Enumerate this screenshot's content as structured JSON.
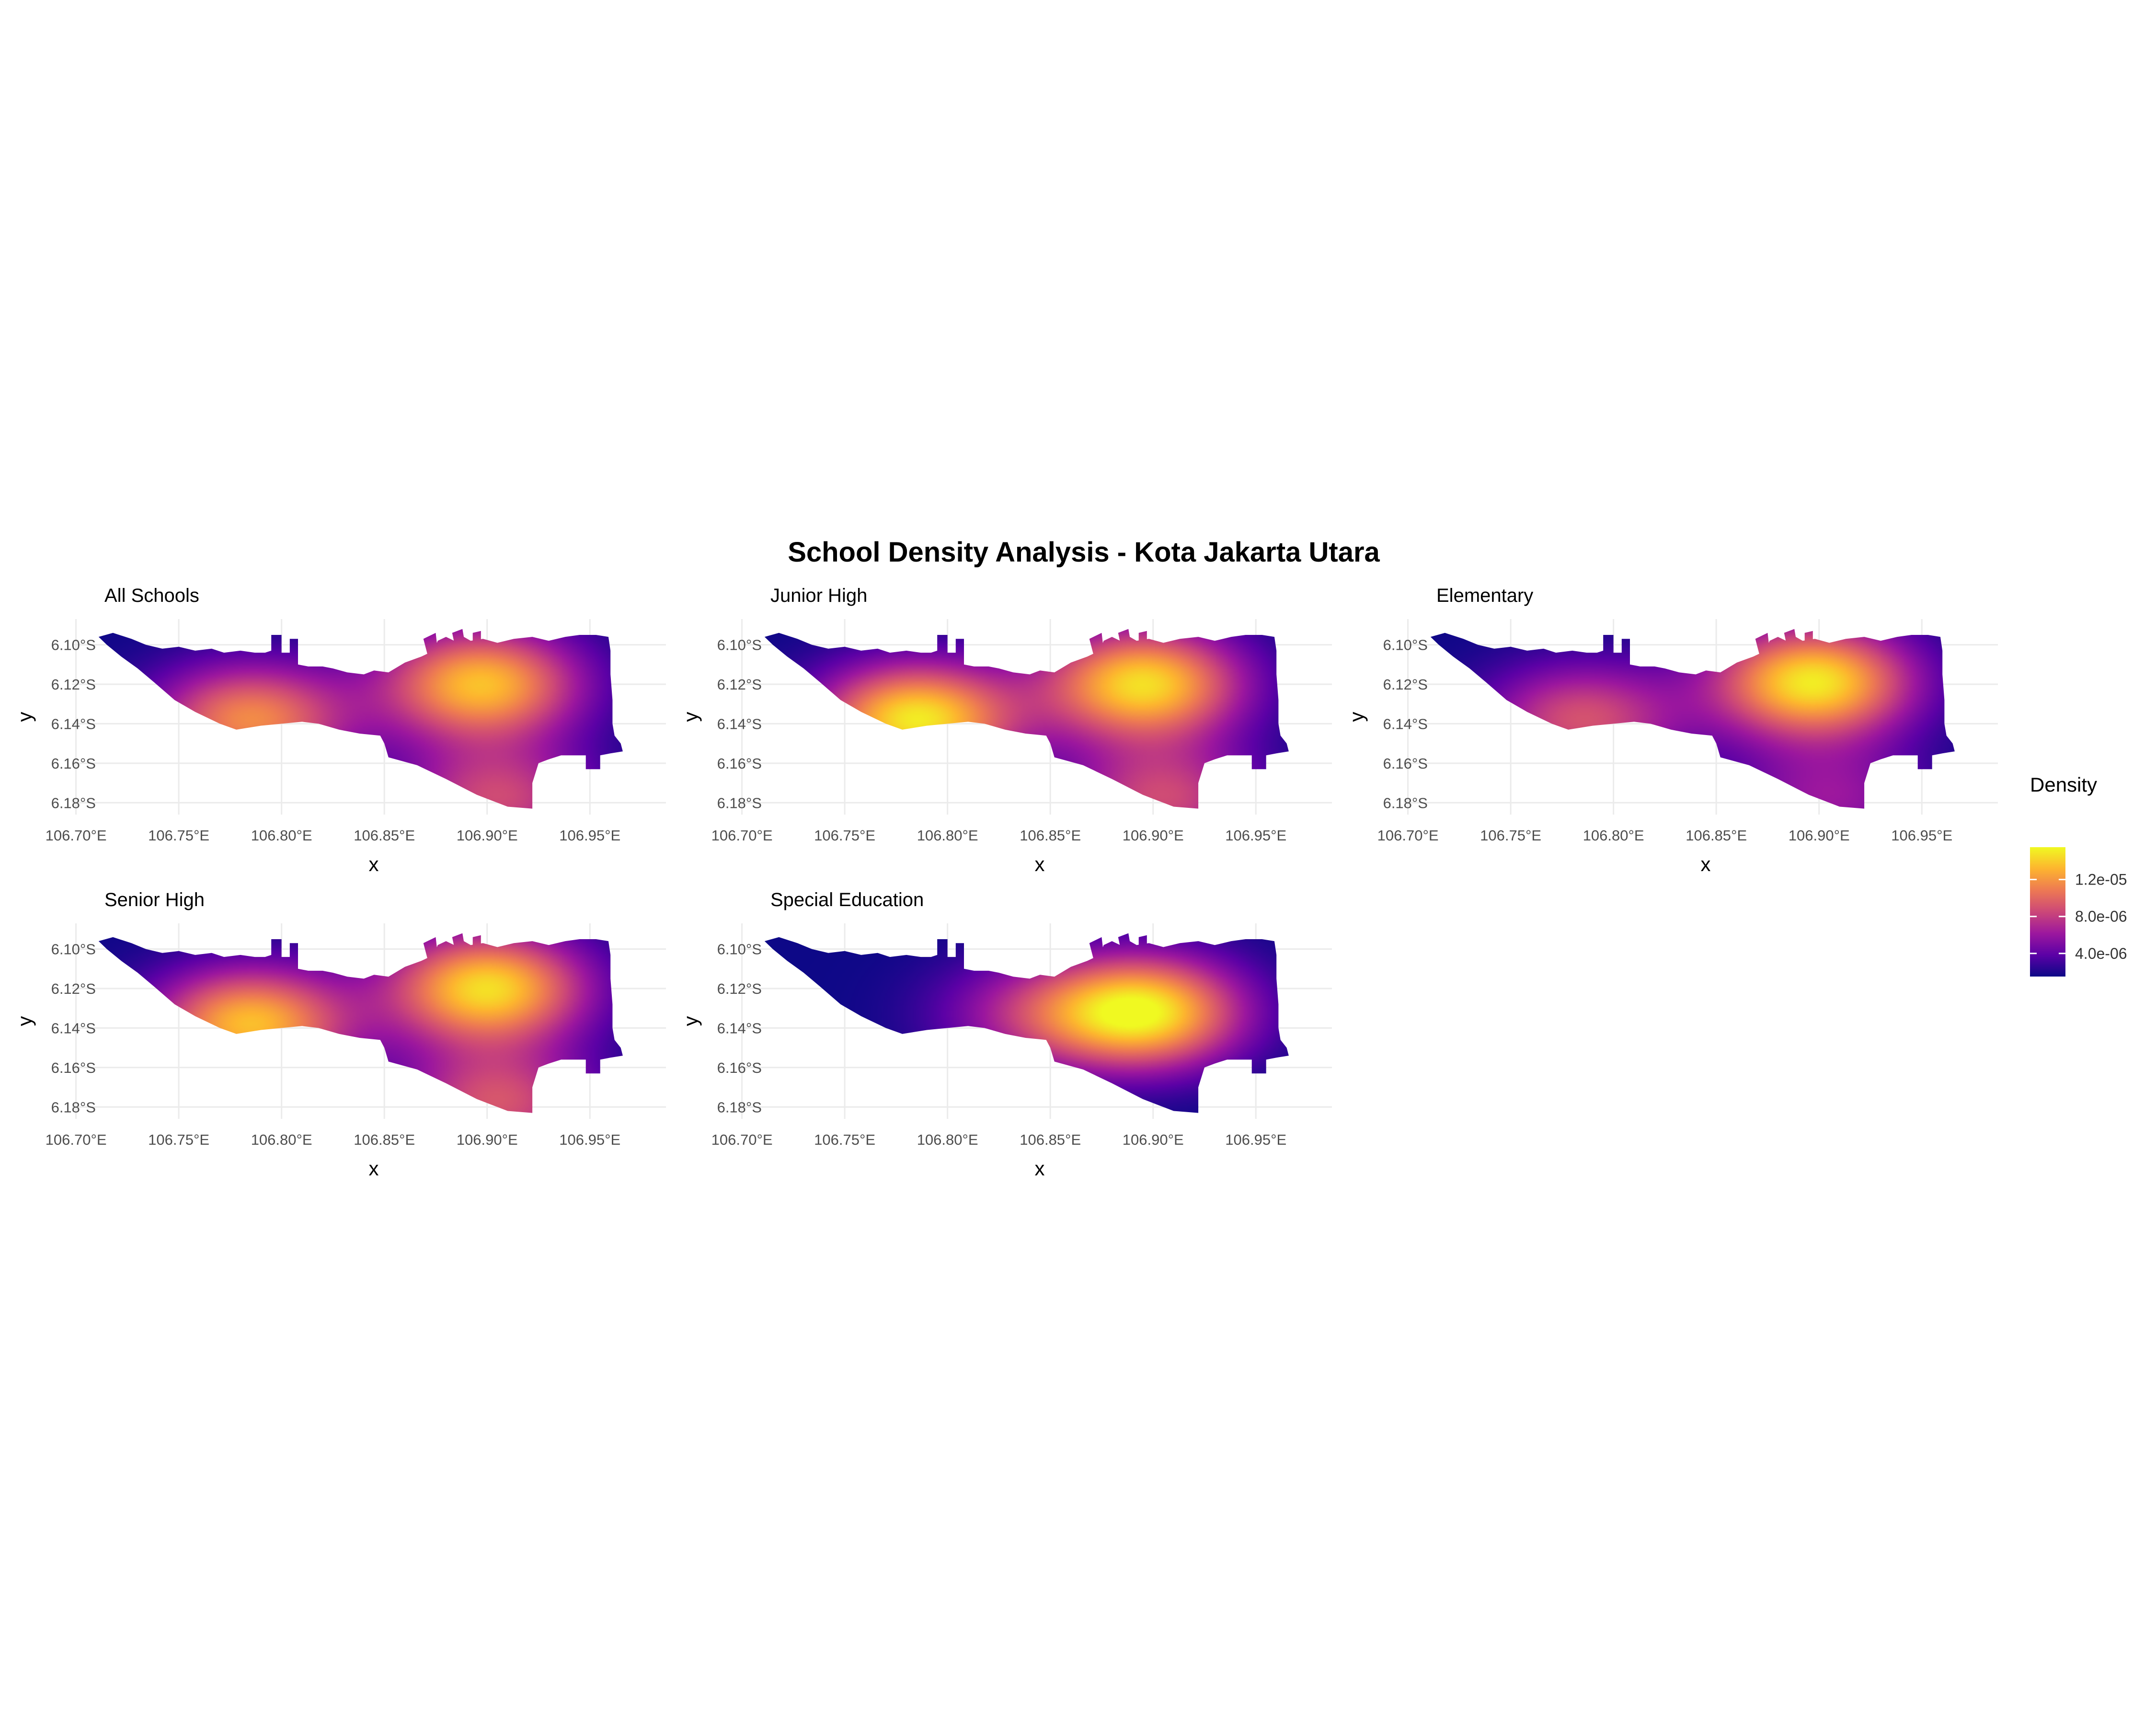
{
  "title": "School Density Analysis - Kota Jakarta Utara",
  "x_axis_label": "x",
  "y_axis_label": "y",
  "colors": {
    "palette": [
      "#0d0887",
      "#5c01a6",
      "#9c179e",
      "#cc4778",
      "#ed7953",
      "#fdb42f",
      "#f0f921"
    ],
    "grid": "#ebebeb",
    "background": "#ffffff"
  },
  "legend": {
    "title": "Density",
    "placement": "right",
    "range": [
      1.5e-06,
      1.55e-05
    ],
    "ticks": [
      {
        "value": 4e-06,
        "label": "4.0e-06"
      },
      {
        "value": 8e-06,
        "label": "8.0e-06"
      },
      {
        "value": 1.2e-05,
        "label": "1.2e-05"
      }
    ]
  },
  "chart_data": [
    {
      "type": "heatmap",
      "title": "All Schools",
      "x_ticks": [
        {
          "value": 106.7,
          "label": "106.70°E"
        },
        {
          "value": 106.75,
          "label": "106.75°E"
        },
        {
          "value": 106.8,
          "label": "106.80°E"
        },
        {
          "value": 106.85,
          "label": "106.85°E"
        },
        {
          "value": 106.9,
          "label": "106.90°E"
        },
        {
          "value": 106.95,
          "label": "106.95°E"
        }
      ],
      "y_ticks": [
        {
          "value": -6.1,
          "label": "6.10°S"
        },
        {
          "value": -6.12,
          "label": "6.12°S"
        },
        {
          "value": -6.14,
          "label": "6.14°S"
        },
        {
          "value": -6.16,
          "label": "6.16°S"
        },
        {
          "value": -6.18,
          "label": "6.18°S"
        }
      ],
      "xlim": [
        106.698,
        106.987
      ],
      "ylim": [
        -6.186,
        -6.087
      ],
      "grid": true,
      "density_peaks": [
        {
          "lon": 106.897,
          "lat": -6.12,
          "density": 1.35e-05
        },
        {
          "lon": 106.785,
          "lat": -6.138,
          "density": 1.15e-05
        },
        {
          "lon": 106.905,
          "lat": -6.178,
          "density": 8.5e-06
        }
      ]
    },
    {
      "type": "heatmap",
      "title": "Junior High",
      "x_ticks": [
        {
          "value": 106.7,
          "label": "106.70°E"
        },
        {
          "value": 106.75,
          "label": "106.75°E"
        },
        {
          "value": 106.8,
          "label": "106.80°E"
        },
        {
          "value": 106.85,
          "label": "106.85°E"
        },
        {
          "value": 106.9,
          "label": "106.90°E"
        },
        {
          "value": 106.95,
          "label": "106.95°E"
        }
      ],
      "y_ticks": [
        {
          "value": -6.1,
          "label": "6.10°S"
        },
        {
          "value": -6.12,
          "label": "6.12°S"
        },
        {
          "value": -6.14,
          "label": "6.14°S"
        },
        {
          "value": -6.16,
          "label": "6.16°S"
        },
        {
          "value": -6.18,
          "label": "6.18°S"
        }
      ],
      "xlim": [
        106.698,
        106.987
      ],
      "ylim": [
        -6.186,
        -6.087
      ],
      "grid": true,
      "density_peaks": [
        {
          "lon": 106.895,
          "lat": -6.12,
          "density": 1.45e-05
        },
        {
          "lon": 106.785,
          "lat": -6.138,
          "density": 1.5e-05
        },
        {
          "lon": 106.905,
          "lat": -6.178,
          "density": 8.5e-06
        }
      ]
    },
    {
      "type": "heatmap",
      "title": "Elementary",
      "x_ticks": [
        {
          "value": 106.7,
          "label": "106.70°E"
        },
        {
          "value": 106.75,
          "label": "106.75°E"
        },
        {
          "value": 106.8,
          "label": "106.80°E"
        },
        {
          "value": 106.85,
          "label": "106.85°E"
        },
        {
          "value": 106.9,
          "label": "106.90°E"
        },
        {
          "value": 106.95,
          "label": "106.95°E"
        }
      ],
      "y_ticks": [
        {
          "value": -6.1,
          "label": "6.10°S"
        },
        {
          "value": -6.12,
          "label": "6.12°S"
        },
        {
          "value": -6.14,
          "label": "6.14°S"
        },
        {
          "value": -6.16,
          "label": "6.16°S"
        },
        {
          "value": -6.18,
          "label": "6.18°S"
        }
      ],
      "xlim": [
        106.698,
        106.987
      ],
      "ylim": [
        -6.186,
        -6.087
      ],
      "grid": true,
      "density_peaks": [
        {
          "lon": 106.897,
          "lat": -6.119,
          "density": 1.5e-05
        },
        {
          "lon": 106.785,
          "lat": -6.138,
          "density": 9e-06
        },
        {
          "lon": 106.905,
          "lat": -6.178,
          "density": 6e-06
        }
      ]
    },
    {
      "type": "heatmap",
      "title": "Senior High",
      "x_ticks": [
        {
          "value": 106.7,
          "label": "106.70°E"
        },
        {
          "value": 106.75,
          "label": "106.75°E"
        },
        {
          "value": 106.8,
          "label": "106.80°E"
        },
        {
          "value": 106.85,
          "label": "106.85°E"
        },
        {
          "value": 106.9,
          "label": "106.90°E"
        },
        {
          "value": 106.95,
          "label": "106.95°E"
        }
      ],
      "y_ticks": [
        {
          "value": -6.1,
          "label": "6.10°S"
        },
        {
          "value": -6.12,
          "label": "6.12°S"
        },
        {
          "value": -6.14,
          "label": "6.14°S"
        },
        {
          "value": -6.16,
          "label": "6.16°S"
        },
        {
          "value": -6.18,
          "label": "6.18°S"
        }
      ],
      "xlim": [
        106.698,
        106.987
      ],
      "ylim": [
        -6.186,
        -6.087
      ],
      "grid": true,
      "density_peaks": [
        {
          "lon": 106.9,
          "lat": -6.12,
          "density": 1.45e-05
        },
        {
          "lon": 106.785,
          "lat": -6.138,
          "density": 1.35e-05
        },
        {
          "lon": 106.905,
          "lat": -6.178,
          "density": 9e-06
        }
      ]
    },
    {
      "type": "heatmap",
      "title": "Special Education",
      "x_ticks": [
        {
          "value": 106.7,
          "label": "106.70°E"
        },
        {
          "value": 106.75,
          "label": "106.75°E"
        },
        {
          "value": 106.8,
          "label": "106.80°E"
        },
        {
          "value": 106.85,
          "label": "106.85°E"
        },
        {
          "value": 106.9,
          "label": "106.90°E"
        },
        {
          "value": 106.95,
          "label": "106.95°E"
        }
      ],
      "y_ticks": [
        {
          "value": -6.1,
          "label": "6.10°S"
        },
        {
          "value": -6.12,
          "label": "6.12°S"
        },
        {
          "value": -6.14,
          "label": "6.14°S"
        },
        {
          "value": -6.16,
          "label": "6.16°S"
        },
        {
          "value": -6.18,
          "label": "6.18°S"
        }
      ],
      "xlim": [
        106.698,
        106.987
      ],
      "ylim": [
        -6.186,
        -6.087
      ],
      "grid": true,
      "density_peaks": [
        {
          "lon": 106.895,
          "lat": -6.132,
          "density": 1.5e-05
        },
        {
          "lon": 106.84,
          "lat": -6.133,
          "density": 6e-06
        }
      ]
    }
  ]
}
